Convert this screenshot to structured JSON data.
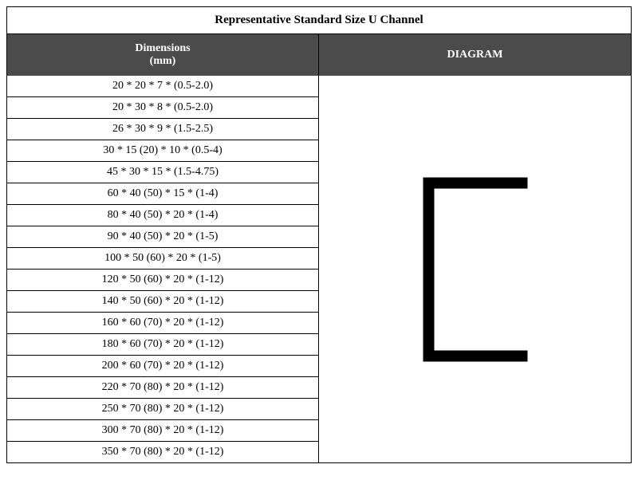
{
  "title": "Representative Standard Size U Channel",
  "headers": {
    "dimensions_line1": "Dimensions",
    "dimensions_line2": "(mm)",
    "diagram": "DIAGRAM"
  },
  "rows": [
    "20 * 20 * 7 * (0.5-2.0)",
    "20 * 30 * 8 * (0.5-2.0)",
    "26 * 30 * 9 * (1.5-2.5)",
    "30 * 15 (20) * 10 * (0.5-4)",
    "45 * 30 * 15 * (1.5-4.75)",
    "60 * 40 (50) * 15 * (1-4)",
    "80 * 40 (50) * 20 * (1-4)",
    "90 * 40 (50) * 20 * (1-5)",
    "100 * 50 (60) * 20 * (1-5)",
    "120 * 50 (60) * 20 * (1-12)",
    "140 * 50 (60) * 20 * (1-12)",
    "160 * 60 (70) * 20 * (1-12)",
    "180 * 60 (70) * 20 * (1-12)",
    "200 * 60 (70) * 20 * (1-12)",
    "220 * 70 (80) * 20 * (1-12)",
    "250 * 70 (80) * 20 * (1-12)",
    "300 * 70 (80) * 20 * (1-12)",
    "350 * 70 (80) * 20 * (1-12)"
  ],
  "diagram": {
    "type": "u-channel",
    "stroke_color": "#000000",
    "fill_color": "#f7f5f0",
    "outer_width": 130,
    "outer_height": 230,
    "thickness": 13,
    "flange_depth": 130
  },
  "styling": {
    "header_bg": "#4b4b4b",
    "header_text": "#ffffff",
    "border_color": "#000000",
    "cell_bg": "#ffffff",
    "title_fontsize": 15,
    "header_fontsize": 14,
    "cell_fontsize": 14
  }
}
